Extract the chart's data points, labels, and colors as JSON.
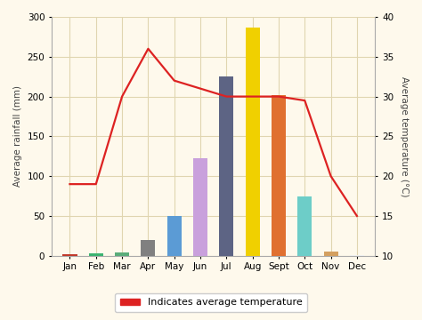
{
  "months": [
    "Jan",
    "Feb",
    "Mar",
    "Apr",
    "May",
    "Jun",
    "Jul",
    "Aug",
    "Sept",
    "Oct",
    "Nov",
    "Dec"
  ],
  "rainfall": [
    2,
    3,
    4,
    20,
    50,
    123,
    225,
    287,
    202,
    75,
    5,
    1
  ],
  "bar_colors": [
    "#c0392b",
    "#3cb371",
    "#5aac7a",
    "#808080",
    "#5b9bd5",
    "#c9a0dc",
    "#5d6484",
    "#f0d000",
    "#e07030",
    "#6dcdc8",
    "#d4a060",
    "#eeeeee"
  ],
  "temperature": [
    19,
    19,
    30,
    36,
    32,
    31,
    30,
    30,
    30,
    29.5,
    20,
    15
  ],
  "temp_color": "#dd2222",
  "ylabel_left": "Average rainfall (mm)",
  "ylabel_right": "Average temperature (°C)",
  "ylim_left": [
    0,
    300
  ],
  "ylim_right": [
    10,
    40
  ],
  "yticks_left": [
    0,
    50,
    100,
    150,
    200,
    250,
    300
  ],
  "yticks_right": [
    10,
    15,
    20,
    25,
    30,
    35,
    40
  ],
  "legend_label": "Indicates average temperature",
  "bg_color": "#fef9ec",
  "grid_color": "#e0d5b0",
  "bar_width": 0.55
}
